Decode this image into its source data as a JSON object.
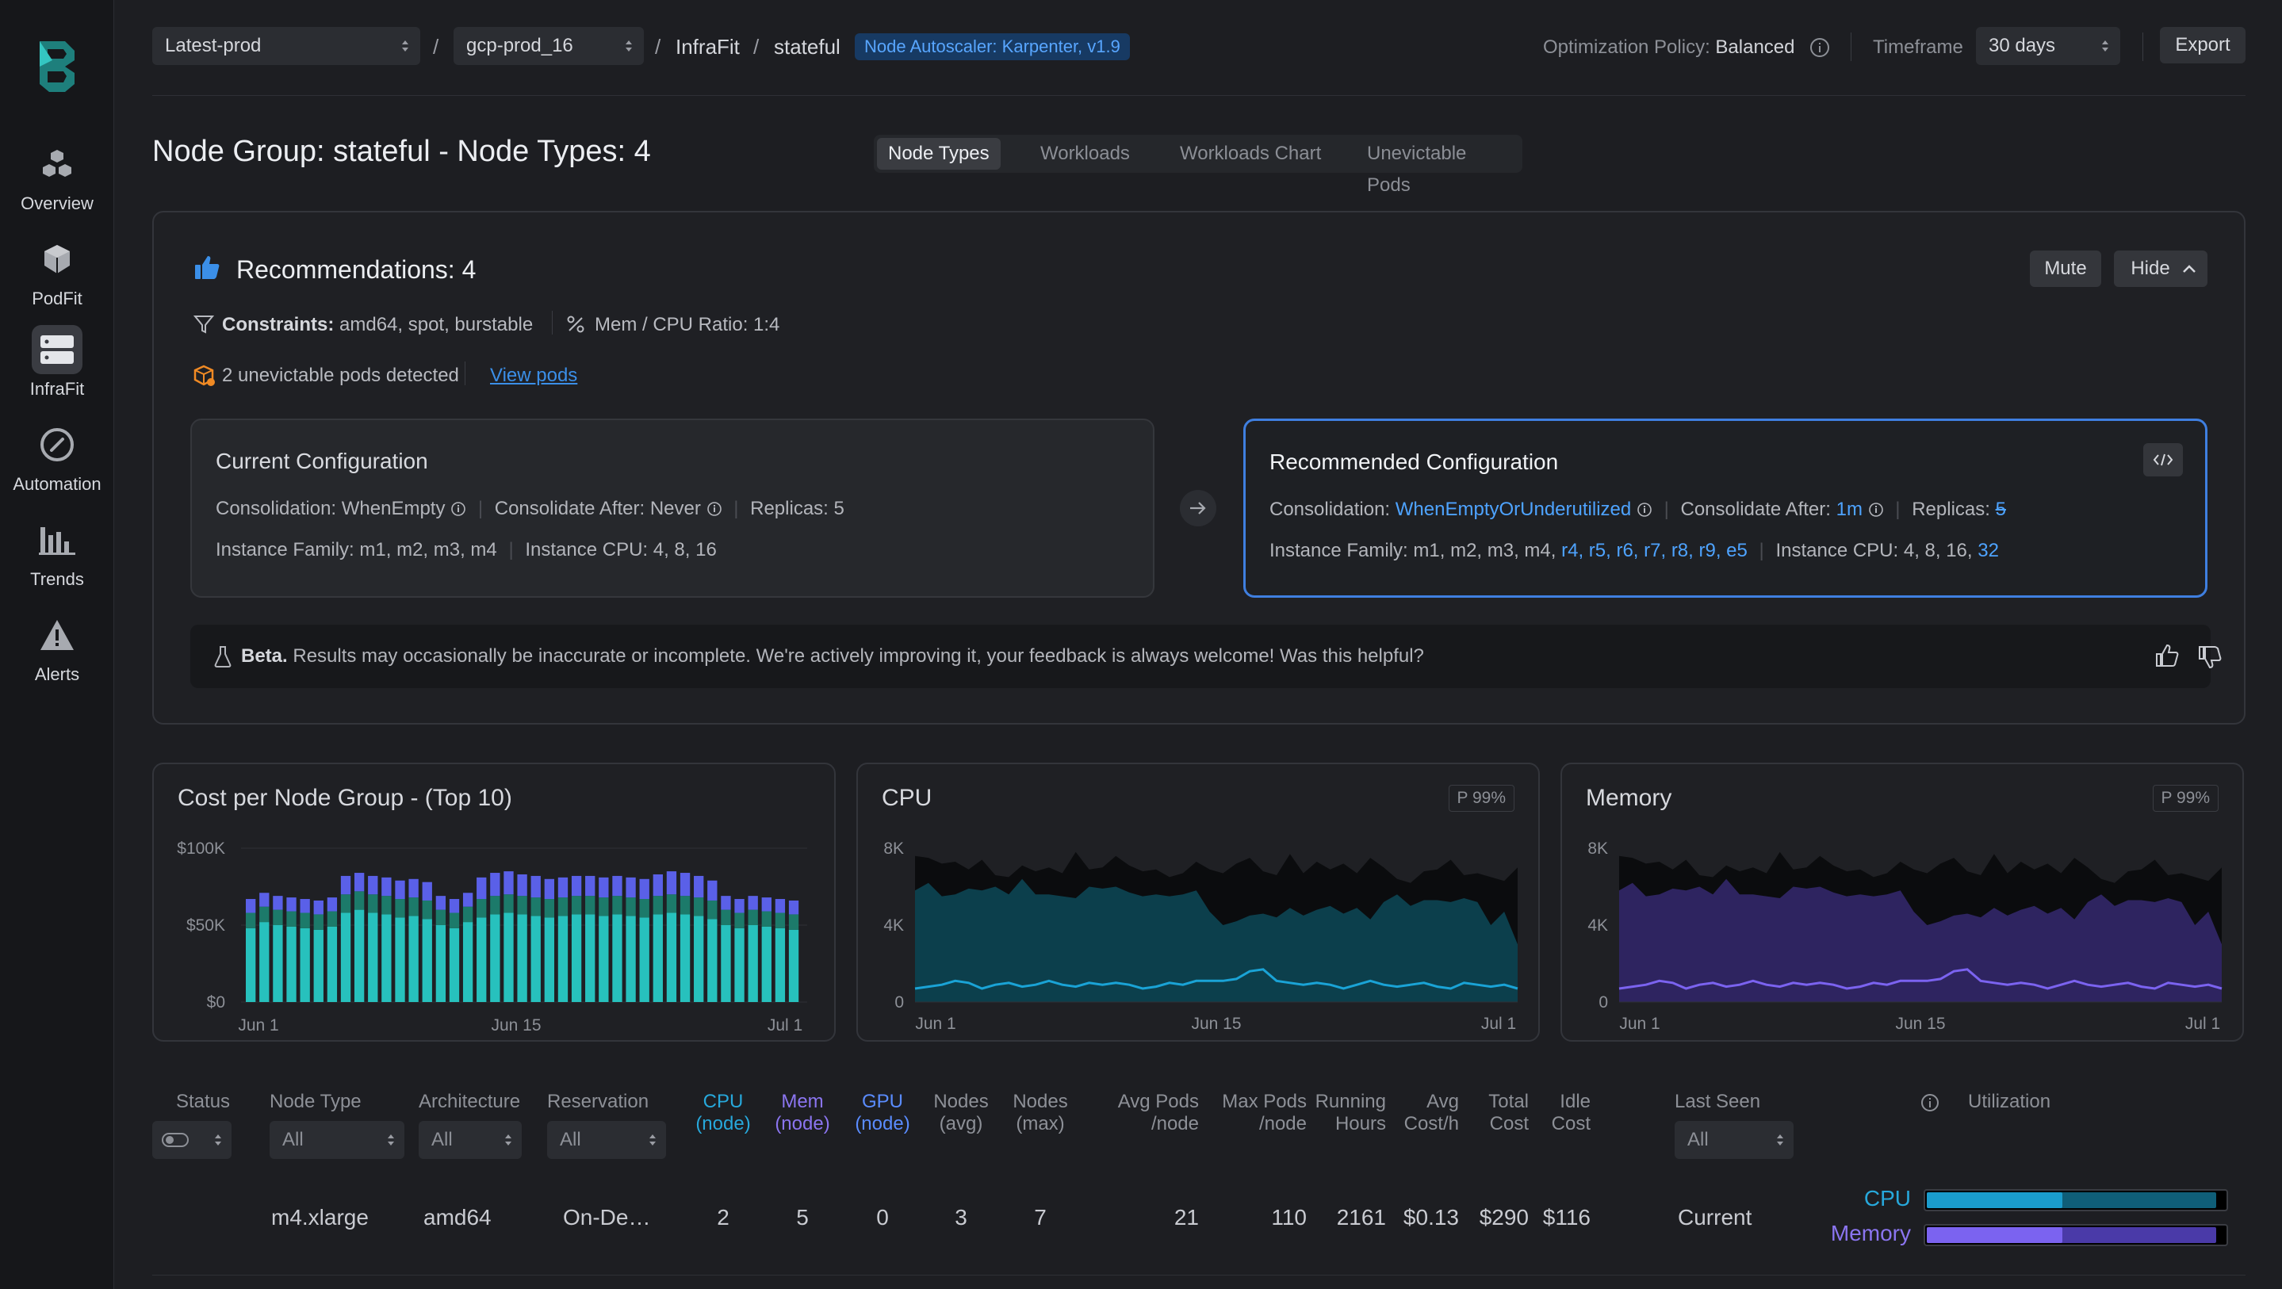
{
  "sidebar": {
    "items": [
      {
        "label": "Overview",
        "icon": "cubes-icon"
      },
      {
        "label": "PodFit",
        "icon": "cube-icon"
      },
      {
        "label": "InfraFit",
        "icon": "server-icon"
      },
      {
        "label": "Automation",
        "icon": "gauge-icon"
      },
      {
        "label": "Trends",
        "icon": "bar-chart-icon"
      },
      {
        "label": "Alerts",
        "icon": "warning-icon"
      }
    ]
  },
  "topbar": {
    "env_select": "Latest-prod",
    "cluster_select": "gcp-prod_16",
    "breadcrumb_1": "InfraFit",
    "breadcrumb_2": "stateful",
    "autoscaler_badge": "Node Autoscaler: Karpenter, v1.9",
    "policy_label": "Optimization Policy:",
    "policy_value": "Balanced",
    "timeframe_label": "Timeframe",
    "timeframe_value": "30 days",
    "export_label": "Export"
  },
  "page": {
    "title": "Node Group: stateful - Node Types: 4",
    "tabs": [
      "Node Types",
      "Workloads",
      "Workloads Chart",
      "Unevictable Pods"
    ]
  },
  "recommendations": {
    "title": "Recommendations: 4",
    "mute": "Mute",
    "hide": "Hide",
    "constraints_label": "Constraints:",
    "constraints_value": "amd64, spot, burstable",
    "ratio": "Mem / CPU Ratio: 1:4",
    "unevictable": "2 unevictable pods detected",
    "view_pods": "View pods",
    "current": {
      "title": "Current Configuration",
      "consolidation": "Consolidation: WhenEmpty",
      "consolidate_after": "Consolidate After: Never",
      "replicas": "Replicas: 5",
      "instance_family": "Instance Family: m1, m2, m3, m4",
      "instance_cpu": "Instance CPU: 4, 8, 16"
    },
    "recommended": {
      "title": "Recommended Configuration",
      "consolidation_label": "Consolidation:",
      "consolidation_value": "WhenEmptyOrUnderutilized",
      "consolidate_after_label": "Consolidate After:",
      "consolidate_after_value": "1m",
      "replicas_label": "Replicas:",
      "replicas_value": "5",
      "instance_family_label": "Instance Family: m1, m2, m3, m4,",
      "instance_family_added": "r4, r5, r6, r7, r8, r9, e5",
      "instance_cpu_label": "Instance CPU: 4, 8, 16,",
      "instance_cpu_added": "32"
    },
    "beta_label": "Beta.",
    "beta_text": "Results may occasionally be inaccurate or incomplete. We're actively improving it, your feedback is always welcome! Was this helpful?"
  },
  "colors": {
    "teal": "#27c1bd",
    "purple": "#7b63f0",
    "cyan": "#1aa3d6",
    "accent_blue": "#3f7fe0"
  },
  "chart_data": [
    {
      "type": "bar",
      "title": "Cost per Node Group - (Top 10)",
      "y_ticks": [
        "$100K",
        "$50K",
        "$0"
      ],
      "ylim": [
        0,
        100000
      ],
      "x_ticks": [
        "Jun 1",
        "Jun 15",
        "Jul 1"
      ],
      "series": [
        {
          "values": [
            48,
            52,
            50,
            49,
            48,
            47,
            49,
            58,
            60,
            58,
            57,
            55,
            56,
            54,
            50,
            48,
            52,
            55,
            57,
            58,
            57,
            56,
            55,
            56,
            57,
            57,
            56,
            57,
            56,
            55,
            57,
            58,
            57,
            56,
            54,
            50,
            48,
            50,
            49,
            48,
            47
          ]
        },
        {
          "values": [
            10,
            10,
            10,
            10,
            10,
            10,
            10,
            12,
            12,
            12,
            12,
            12,
            12,
            12,
            10,
            10,
            10,
            12,
            12,
            12,
            12,
            12,
            12,
            12,
            12,
            12,
            12,
            12,
            12,
            12,
            12,
            12,
            12,
            12,
            12,
            10,
            10,
            10,
            10,
            10,
            10
          ]
        },
        {
          "values": [
            9,
            9,
            9,
            9,
            9,
            9,
            9,
            12,
            12,
            12,
            12,
            12,
            12,
            12,
            9,
            9,
            9,
            14,
            15,
            15,
            14,
            14,
            13,
            13,
            13,
            13,
            13,
            13,
            13,
            13,
            14,
            15,
            15,
            14,
            13,
            9,
            9,
            9,
            9,
            9,
            9
          ]
        }
      ]
    },
    {
      "type": "area",
      "title": "CPU",
      "badge": "P 99%",
      "y_ticks": [
        "8K",
        "4K",
        "0"
      ],
      "ylim": [
        0,
        8000
      ],
      "x_ticks": [
        "Jun 1",
        "Jun 15",
        "Jul 1"
      ],
      "series": [
        {
          "values": [
            7600,
            7500,
            7200,
            7300,
            6900,
            7400,
            6600,
            6500,
            7100,
            6800,
            7000,
            6700,
            7800,
            6900,
            7000,
            7600,
            7100,
            6800,
            6900,
            6500,
            6700,
            7300,
            6900,
            6700,
            7200,
            7500,
            6800,
            6600,
            7700,
            6700,
            7300,
            6900,
            7200,
            6700,
            7500,
            7000,
            6400,
            6200,
            6800,
            6900,
            7400,
            6600,
            6700,
            6500,
            6300,
            7000
          ]
        },
        {
          "values": [
            5800,
            6200,
            5500,
            5600,
            5900,
            5800,
            6000,
            5600,
            6400,
            5600,
            5600,
            5500,
            5400,
            6000,
            5900,
            6000,
            5700,
            5500,
            5600,
            5500,
            5600,
            5800,
            4700,
            4000,
            4200,
            4500,
            4600,
            4400,
            4900,
            4500,
            4800,
            5000,
            4600,
            4900,
            4300,
            5200,
            5600,
            5000,
            5300,
            5300,
            5200,
            5400,
            5200,
            4000,
            4700,
            3000
          ]
        },
        {
          "values": [
            700,
            800,
            900,
            1100,
            1000,
            700,
            900,
            1000,
            800,
            900,
            1100,
            900,
            800,
            1000,
            900,
            1000,
            900,
            700,
            800,
            1000,
            900,
            1100,
            1100,
            1100,
            1200,
            1600,
            1700,
            1100,
            1000,
            900,
            1000,
            900,
            700,
            900,
            1100,
            900,
            800,
            900,
            1000,
            800,
            700,
            1000,
            900,
            800,
            900,
            700
          ]
        }
      ]
    },
    {
      "type": "area",
      "title": "Memory",
      "badge": "P 99%",
      "y_ticks": [
        "8K",
        "4K",
        "0"
      ],
      "ylim": [
        0,
        8000
      ],
      "x_ticks": [
        "Jun 1",
        "Jun 15",
        "Jul 1"
      ],
      "series": [
        {
          "values": [
            7600,
            7500,
            7200,
            7300,
            6900,
            7400,
            6600,
            6500,
            7100,
            6800,
            7000,
            6700,
            7800,
            6900,
            7000,
            7600,
            7100,
            6800,
            6900,
            6500,
            6700,
            7300,
            6900,
            6700,
            7200,
            7500,
            6800,
            6600,
            7700,
            6700,
            7300,
            6900,
            7200,
            6700,
            7500,
            7000,
            6400,
            6200,
            6800,
            6900,
            7400,
            6600,
            6700,
            6500,
            6300,
            7000
          ]
        },
        {
          "values": [
            5800,
            6200,
            5500,
            5600,
            5900,
            5800,
            6000,
            5600,
            6400,
            5600,
            5600,
            5500,
            5400,
            6000,
            5900,
            6000,
            5700,
            5500,
            5600,
            5500,
            5600,
            5800,
            4700,
            4000,
            4200,
            4500,
            4600,
            4400,
            4900,
            4500,
            4800,
            5000,
            4600,
            4900,
            4300,
            5200,
            5600,
            5000,
            5300,
            5300,
            5200,
            5400,
            5200,
            4000,
            4700,
            3000
          ]
        },
        {
          "values": [
            700,
            800,
            900,
            1100,
            1000,
            700,
            900,
            1000,
            800,
            900,
            1100,
            900,
            800,
            1000,
            900,
            1000,
            900,
            700,
            800,
            1000,
            900,
            1100,
            1100,
            1100,
            1200,
            1600,
            1700,
            1100,
            1000,
            900,
            1000,
            900,
            700,
            900,
            1100,
            900,
            800,
            900,
            1000,
            800,
            700,
            1000,
            900,
            800,
            900,
            700
          ]
        }
      ]
    }
  ],
  "table": {
    "headers": {
      "status": "Status",
      "node_type": "Node Type",
      "architecture": "Architecture",
      "reservation": "Reservation",
      "cpu_node": [
        "CPU",
        "(node)"
      ],
      "mem_node": [
        "Mem",
        "(node)"
      ],
      "gpu_node": [
        "GPU",
        "(node)"
      ],
      "nodes_avg": [
        "Nodes",
        "(avg)"
      ],
      "nodes_max": [
        "Nodes",
        "(max)"
      ],
      "avg_pods": [
        "Avg Pods",
        "/node"
      ],
      "max_pods": [
        "Max Pods",
        "/node"
      ],
      "running_hours": [
        "Running",
        "Hours"
      ],
      "avg_cost": [
        "Avg",
        "Cost/h"
      ],
      "total_cost": [
        "Total",
        "Cost"
      ],
      "idle_cost": [
        "Idle",
        "Cost"
      ],
      "last_seen": "Last Seen",
      "utilization": "Utilization"
    },
    "filter_all": "All",
    "rows": [
      {
        "node_type": "m4.xlarge",
        "architecture": "amd64",
        "reservation": "On-De…",
        "cpu": "2",
        "mem": "5",
        "gpu": "0",
        "nodes_avg": "3",
        "nodes_max": "7",
        "avg_pods": "21",
        "max_pods": "110",
        "running_hours": "2161",
        "avg_cost": "$0.13",
        "total_cost": "$290",
        "idle_cost": "$116",
        "last_seen": "Current",
        "util_cpu_label": "CPU",
        "util_mem_label": "Memory",
        "util_cpu": 0.45,
        "util_mem": 0.45
      }
    ]
  }
}
